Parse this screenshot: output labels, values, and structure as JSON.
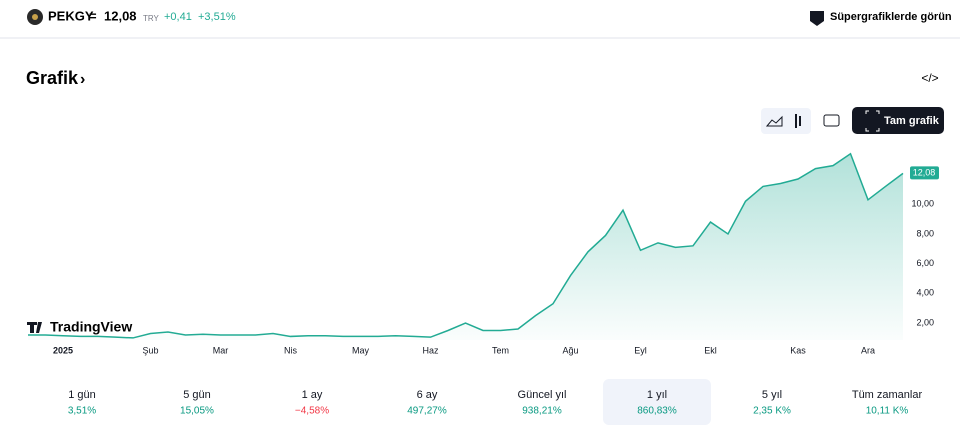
{
  "header": {
    "symbol": "PEKGY",
    "price": "12,08",
    "currency": "TRY",
    "change": "+0,41",
    "change_pct": "+3,51%",
    "link": "Süpergrafiklerde görün"
  },
  "section": {
    "title": "Grafik",
    "button": "Tam grafik",
    "logo": "TradingView"
  },
  "chart_data": {
    "type": "area",
    "color": "#22ab94",
    "categories": [
      null,
      null,
      "2025",
      null,
      null,
      null,
      null,
      "Şub",
      null,
      null,
      null,
      "Mar",
      null,
      null,
      null,
      "Nis",
      null,
      null,
      null,
      "May",
      null,
      null,
      null,
      "Haz",
      null,
      null,
      null,
      "Tem",
      null,
      null,
      null,
      "Ağu",
      null,
      null,
      null,
      "Eyl",
      null,
      null,
      null,
      "Ekl",
      null,
      null,
      null,
      null,
      "Kas",
      null,
      null,
      null,
      "Ara",
      null,
      null
    ],
    "values": [
      1.2,
      1.2,
      1.15,
      1.1,
      1.1,
      1.05,
      1.0,
      1.3,
      1.4,
      1.2,
      1.25,
      1.2,
      1.2,
      1.2,
      1.3,
      1.1,
      1.15,
      1.15,
      1.1,
      1.1,
      1.1,
      1.15,
      1.1,
      1.05,
      1.5,
      2.0,
      1.5,
      1.5,
      1.6,
      2.5,
      3.3,
      5.2,
      6.8,
      7.9,
      9.6,
      6.9,
      7.4,
      7.1,
      7.2,
      8.8,
      8.0,
      10.2,
      11.2,
      11.4,
      11.7,
      12.4,
      12.6,
      13.4,
      10.3,
      11.2,
      12.08
    ],
    "ylim": [
      0.86,
      13.99
    ],
    "yticks": [
      {
        "value": 2,
        "label": "2,00"
      },
      {
        "value": 4,
        "label": "4,00"
      },
      {
        "value": 6,
        "label": "6,00"
      },
      {
        "value": 8,
        "label": "8,00"
      },
      {
        "value": 10,
        "label": "10,00"
      }
    ],
    "price_tag": {
      "value": 12.08,
      "label": "12,08"
    }
  },
  "periods": [
    {
      "label": "1 gün",
      "value": "3,51%"
    },
    {
      "label": "5 gün",
      "value": "15,05%"
    },
    {
      "label": "1 ay",
      "value": "−4,58%"
    },
    {
      "label": "6 ay",
      "value": "497,27%"
    },
    {
      "label": "Güncel yıl",
      "value": "938,21%"
    },
    {
      "label": "1 yıl",
      "value": "860,83%"
    },
    {
      "label": "5 yıl",
      "value": "2,35 K%"
    },
    {
      "label": "Tüm zamanlar",
      "value": "10,11 K%"
    }
  ],
  "selected_period": 5
}
